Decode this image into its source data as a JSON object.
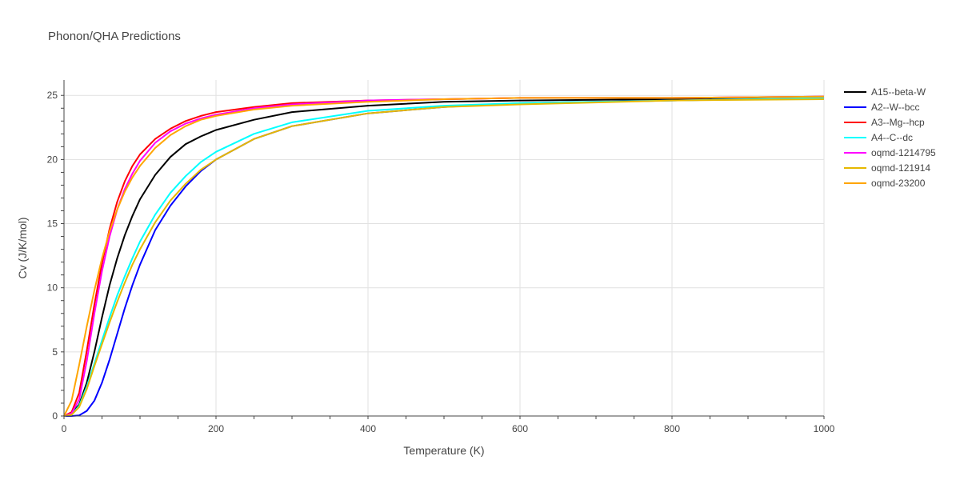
{
  "chart_data": {
    "type": "line",
    "title": "Phonon/QHA Predictions",
    "xlabel": "Temperature (K)",
    "ylabel": "Cv (J/K/mol)",
    "xlim": [
      0,
      1000
    ],
    "ylim": [
      0,
      26.2
    ],
    "xticks": [
      0,
      200,
      400,
      600,
      800,
      1000
    ],
    "xtick_labels": [
      "0",
      "200",
      "400",
      "600",
      "800",
      "1000"
    ],
    "yticks": [
      0,
      5,
      10,
      15,
      20,
      25
    ],
    "ytick_labels": [
      "0",
      "5",
      "10",
      "15",
      "20",
      "25"
    ],
    "grid": true,
    "legend_position": "right",
    "series": [
      {
        "name": "A15--beta-W",
        "color": "#000000",
        "x": [
          0,
          10,
          20,
          30,
          40,
          50,
          60,
          70,
          80,
          90,
          100,
          120,
          140,
          160,
          180,
          200,
          250,
          300,
          400,
          500,
          600,
          800,
          1000
        ],
        "y": [
          0,
          0.2,
          0.9,
          2.6,
          5.0,
          7.7,
          10.2,
          12.3,
          14.1,
          15.6,
          16.9,
          18.8,
          20.2,
          21.2,
          21.8,
          22.3,
          23.1,
          23.7,
          24.2,
          24.5,
          24.6,
          24.7,
          24.8
        ]
      },
      {
        "name": "A2--W--bcc",
        "color": "#0000ff",
        "x": [
          0,
          10,
          20,
          30,
          40,
          50,
          60,
          70,
          80,
          90,
          100,
          120,
          140,
          160,
          180,
          200,
          250,
          300,
          400,
          500,
          600,
          800,
          1000
        ],
        "y": [
          0,
          0,
          0.05,
          0.4,
          1.2,
          2.6,
          4.4,
          6.4,
          8.4,
          10.2,
          11.8,
          14.5,
          16.4,
          17.9,
          19.1,
          20.0,
          21.6,
          22.6,
          23.6,
          24.1,
          24.4,
          24.6,
          24.8
        ]
      },
      {
        "name": "A3--Mg--hcp",
        "color": "#ff0000",
        "x": [
          0,
          10,
          20,
          30,
          40,
          50,
          60,
          70,
          80,
          90,
          100,
          120,
          140,
          160,
          180,
          200,
          250,
          300,
          400,
          500,
          600,
          800,
          1000
        ],
        "y": [
          0,
          0.3,
          1.8,
          5.1,
          8.7,
          11.9,
          14.6,
          16.7,
          18.3,
          19.5,
          20.4,
          21.6,
          22.4,
          23.0,
          23.4,
          23.7,
          24.1,
          24.4,
          24.6,
          24.7,
          24.8,
          24.8,
          24.9
        ]
      },
      {
        "name": "A4--C--dc",
        "color": "#00ffff",
        "x": [
          0,
          10,
          20,
          30,
          40,
          50,
          60,
          70,
          80,
          90,
          100,
          120,
          140,
          160,
          180,
          200,
          250,
          300,
          400,
          500,
          600,
          800,
          1000
        ],
        "y": [
          0,
          0.1,
          0.8,
          2.3,
          4.1,
          5.9,
          7.7,
          9.4,
          10.9,
          12.3,
          13.6,
          15.7,
          17.4,
          18.7,
          19.8,
          20.6,
          22.0,
          22.9,
          23.8,
          24.2,
          24.4,
          24.6,
          24.8
        ]
      },
      {
        "name": "oqmd-1214795",
        "color": "#ff00ff",
        "x": [
          0,
          10,
          20,
          30,
          40,
          50,
          60,
          70,
          80,
          90,
          100,
          120,
          140,
          160,
          180,
          200,
          250,
          300,
          400,
          500,
          600,
          800,
          1000
        ],
        "y": [
          0,
          0.2,
          1.3,
          4.3,
          8.0,
          11.3,
          14.0,
          16.1,
          17.7,
          18.9,
          19.9,
          21.3,
          22.2,
          22.8,
          23.2,
          23.5,
          24.0,
          24.3,
          24.6,
          24.7,
          24.8,
          24.8,
          24.9
        ]
      },
      {
        "name": "oqmd-121914",
        "color": "#e6b800",
        "x": [
          0,
          10,
          20,
          30,
          40,
          50,
          60,
          70,
          80,
          90,
          100,
          120,
          140,
          160,
          180,
          200,
          250,
          300,
          400,
          500,
          600,
          800,
          1000
        ],
        "y": [
          0,
          0.1,
          0.7,
          2.1,
          3.9,
          5.6,
          7.3,
          8.9,
          10.4,
          11.8,
          13.0,
          15.1,
          16.8,
          18.1,
          19.2,
          20.0,
          21.6,
          22.6,
          23.6,
          24.1,
          24.3,
          24.6,
          24.7
        ]
      },
      {
        "name": "oqmd-23200",
        "color": "#ffa500",
        "x": [
          0,
          10,
          20,
          30,
          40,
          50,
          60,
          70,
          80,
          90,
          100,
          120,
          140,
          160,
          180,
          200,
          250,
          300,
          400,
          500,
          600,
          800,
          1000
        ],
        "y": [
          0,
          1.2,
          4.0,
          7.0,
          9.8,
          12.3,
          14.4,
          16.1,
          17.5,
          18.6,
          19.5,
          20.9,
          21.9,
          22.6,
          23.1,
          23.4,
          23.9,
          24.2,
          24.5,
          24.7,
          24.8,
          24.8,
          24.9
        ]
      }
    ]
  }
}
